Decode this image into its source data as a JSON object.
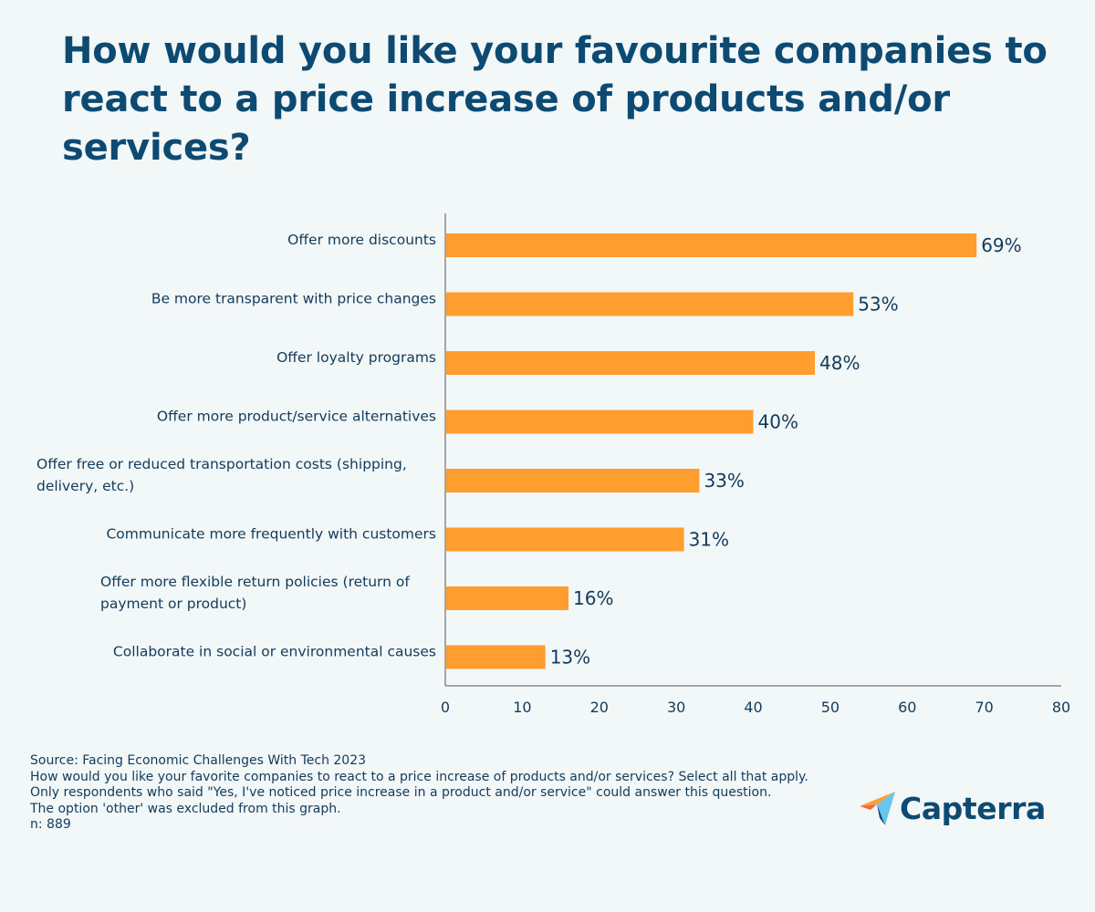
{
  "chart_data": {
    "type": "bar",
    "orientation": "horizontal",
    "title": "How would you like your favourite companies to react to a price increase of products and/or services?",
    "categories": [
      [
        "Offer more discounts"
      ],
      [
        "Be more transparent with price changes"
      ],
      [
        "Offer loyalty programs"
      ],
      [
        "Offer more product/service alternatives"
      ],
      [
        "Offer free or reduced transportation costs (shipping,",
        "delivery, etc.)"
      ],
      [
        "Communicate more frequently with customers"
      ],
      [
        "Offer more flexible return policies (return of",
        "payment or product)"
      ],
      [
        "Collaborate in social or environmental causes"
      ]
    ],
    "values": [
      69,
      53,
      48,
      40,
      33,
      31,
      16,
      13
    ],
    "value_labels": [
      "69%",
      "53%",
      "48%",
      "40%",
      "33%",
      "31%",
      "16%",
      "13%"
    ],
    "xlim": [
      0,
      80
    ],
    "xticks": [
      "0",
      "10",
      "20",
      "30",
      "40",
      "50",
      "60",
      "70",
      "80"
    ],
    "xlabel": "",
    "ylabel": "",
    "bar_color": "#ff9d2e",
    "grid": false
  },
  "footer": {
    "source": "Source: Facing Economic Challenges With Tech 2023",
    "question": "How would you like your favorite companies to react to a price increase of products and/or services? Select all that apply.",
    "note_1": "Only respondents who said \"Yes, I've noticed price increase in a product and/or service\" could answer this question.",
    "note_2": "The option 'other' was excluded from this graph.",
    "sample": "n:  889"
  },
  "brand": {
    "name": "Capterra",
    "logo_icon": "capterra-arrow-icon"
  },
  "colors": {
    "background": "#f2f7f8",
    "title": "#0d4a72",
    "text": "#123b5a",
    "bar": "#ff9d2e",
    "axis": "#555555"
  }
}
